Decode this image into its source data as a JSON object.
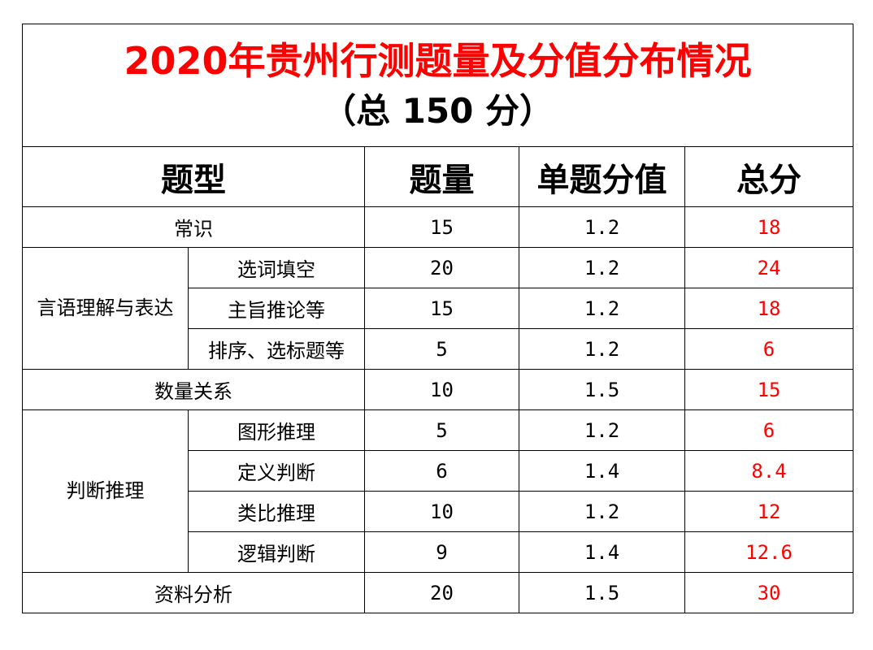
{
  "title": {
    "main": "2020年贵州行测题量及分值分布情况",
    "sub": "（总 150 分）"
  },
  "headers": {
    "type": "题型",
    "count": "题量",
    "unit_score": "单题分值",
    "total": "总分"
  },
  "colors": {
    "title": "#ff0000",
    "total_values": "#ff0000",
    "text": "#000000",
    "border": "#000000"
  },
  "rows": {
    "changshi": {
      "type": "常识",
      "count": "15",
      "unit": "1.2",
      "total": "18"
    },
    "yanyu": {
      "group": "言语理解与表达",
      "items": [
        {
          "type": "选词填空",
          "count": "20",
          "unit": "1.2",
          "total": "24"
        },
        {
          "type": "主旨推论等",
          "count": "15",
          "unit": "1.2",
          "total": "18"
        },
        {
          "type": "排序、选标题等",
          "count": "5",
          "unit": "1.2",
          "total": "6"
        }
      ]
    },
    "shuliang": {
      "type": "数量关系",
      "count": "10",
      "unit": "1.5",
      "total": "15"
    },
    "panduan": {
      "group": "判断推理",
      "items": [
        {
          "type": "图形推理",
          "count": "5",
          "unit": "1.2",
          "total": "6"
        },
        {
          "type": "定义判断",
          "count": "6",
          "unit": "1.4",
          "total": "8.4"
        },
        {
          "type": "类比推理",
          "count": "10",
          "unit": "1.2",
          "total": "12"
        },
        {
          "type": "逻辑判断",
          "count": "9",
          "unit": "1.4",
          "total": "12.6"
        }
      ]
    },
    "ziliao": {
      "type": "资料分析",
      "count": "20",
      "unit": "1.5",
      "total": "30"
    }
  }
}
